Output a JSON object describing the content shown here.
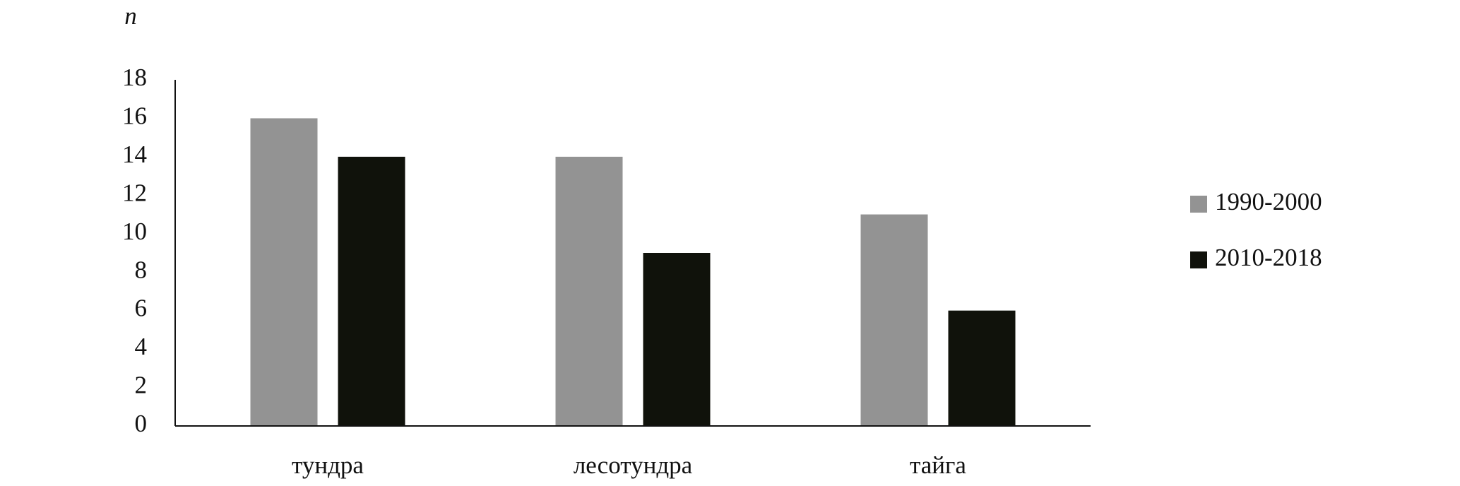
{
  "chart_data": {
    "type": "bar",
    "y_label": "n",
    "categories": [
      "тундра",
      "лесотундра",
      "тайга"
    ],
    "series": [
      {
        "name": "1990-2000",
        "color": "#939393",
        "values": [
          16,
          14,
          11
        ]
      },
      {
        "name": "2010-2018",
        "color": "#10120b",
        "values": [
          14,
          9,
          6
        ]
      }
    ],
    "ylim": [
      0,
      18
    ],
    "yticks": [
      0,
      2,
      4,
      6,
      8,
      10,
      12,
      14,
      16,
      18
    ],
    "grid": false,
    "legend": "right"
  }
}
